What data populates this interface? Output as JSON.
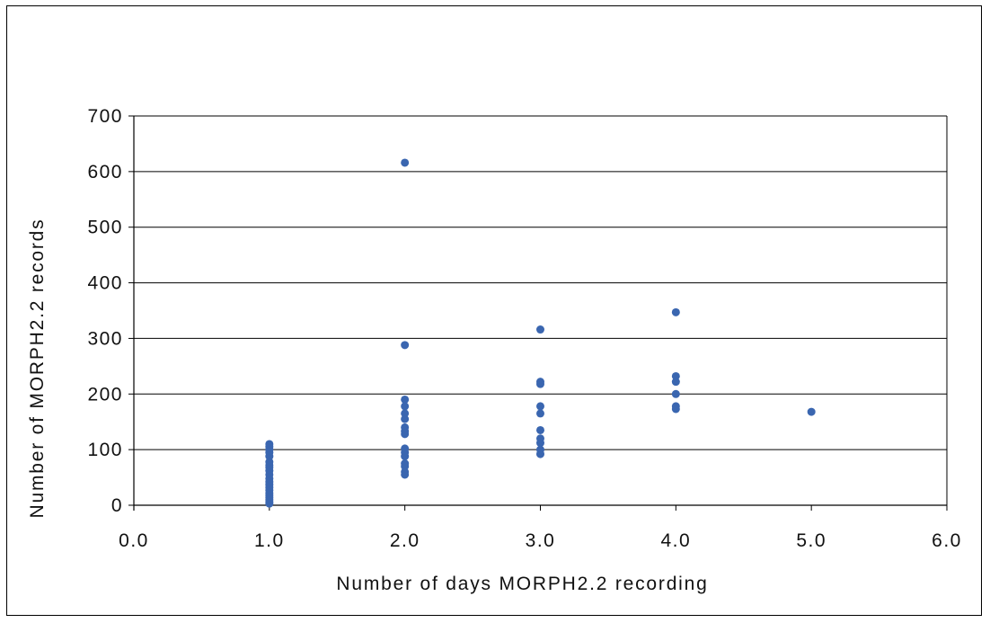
{
  "chart_data": {
    "type": "scatter",
    "title": "",
    "xlabel": "Number of days MORPH2.2 recording",
    "ylabel": "Number of MORPH2.2 records",
    "xlim": [
      0,
      6
    ],
    "ylim": [
      0,
      700
    ],
    "x_ticks": [
      "0.0",
      "1.0",
      "2.0",
      "3.0",
      "4.0",
      "5.0",
      "6.0"
    ],
    "y_ticks": [
      "0",
      "100",
      "200",
      "300",
      "400",
      "500",
      "600",
      "700"
    ],
    "grid": "horizontal",
    "legend": "none",
    "marker_color": "#3a66b0",
    "points": [
      [
        1,
        3
      ],
      [
        1,
        6
      ],
      [
        1,
        10
      ],
      [
        1,
        14
      ],
      [
        1,
        18
      ],
      [
        1,
        22
      ],
      [
        1,
        27
      ],
      [
        1,
        32
      ],
      [
        1,
        37
      ],
      [
        1,
        42
      ],
      [
        1,
        48
      ],
      [
        1,
        55
      ],
      [
        1,
        62
      ],
      [
        1,
        68
      ],
      [
        1,
        72
      ],
      [
        1,
        78
      ],
      [
        1,
        88
      ],
      [
        1,
        95
      ],
      [
        1,
        100
      ],
      [
        1,
        105
      ],
      [
        1,
        110
      ],
      [
        2,
        55
      ],
      [
        2,
        60
      ],
      [
        2,
        70
      ],
      [
        2,
        75
      ],
      [
        2,
        88
      ],
      [
        2,
        95
      ],
      [
        2,
        102
      ],
      [
        2,
        128
      ],
      [
        2,
        133
      ],
      [
        2,
        140
      ],
      [
        2,
        155
      ],
      [
        2,
        165
      ],
      [
        2,
        178
      ],
      [
        2,
        190
      ],
      [
        2,
        288
      ],
      [
        2,
        616
      ],
      [
        3,
        92
      ],
      [
        3,
        100
      ],
      [
        3,
        112
      ],
      [
        3,
        120
      ],
      [
        3,
        135
      ],
      [
        3,
        165
      ],
      [
        3,
        178
      ],
      [
        3,
        218
      ],
      [
        3,
        222
      ],
      [
        3,
        316
      ],
      [
        4,
        173
      ],
      [
        4,
        178
      ],
      [
        4,
        200
      ],
      [
        4,
        222
      ],
      [
        4,
        232
      ],
      [
        4,
        347
      ],
      [
        5,
        168
      ]
    ]
  }
}
